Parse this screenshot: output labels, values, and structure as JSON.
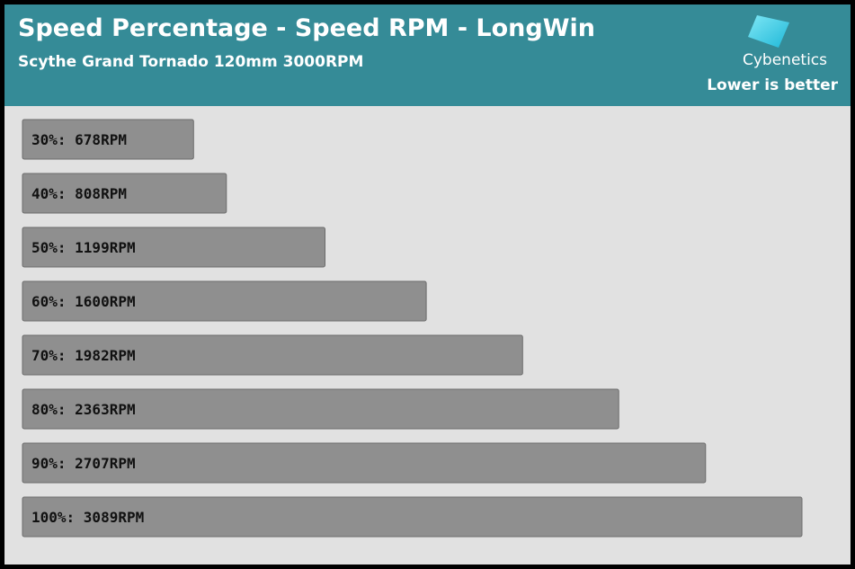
{
  "header": {
    "title": "Speed Percentage - Speed RPM - LongWin",
    "subtitle": "Scythe Grand Tornado 120mm 3000RPM",
    "logo_text": "Cybenetics",
    "note": "Lower is better",
    "background_color": "#358b97"
  },
  "chart_data": {
    "type": "bar",
    "orientation": "horizontal",
    "categories": [
      "30%",
      "40%",
      "50%",
      "60%",
      "70%",
      "80%",
      "90%",
      "100%"
    ],
    "values": [
      678,
      808,
      1199,
      1600,
      1982,
      2363,
      2707,
      3089
    ],
    "labels": [
      "30%: 678RPM",
      "40%: 808RPM",
      "50%: 1199RPM",
      "60%: 1600RPM",
      "70%: 1982RPM",
      "80%: 2363RPM",
      "90%: 2707RPM",
      "100%: 3089RPM"
    ],
    "title": "Speed Percentage - Speed RPM - LongWin",
    "subtitle": "Scythe Grand Tornado 120mm 3000RPM",
    "grid": false,
    "legend": "none",
    "bar_color": "#8f8f8f"
  }
}
